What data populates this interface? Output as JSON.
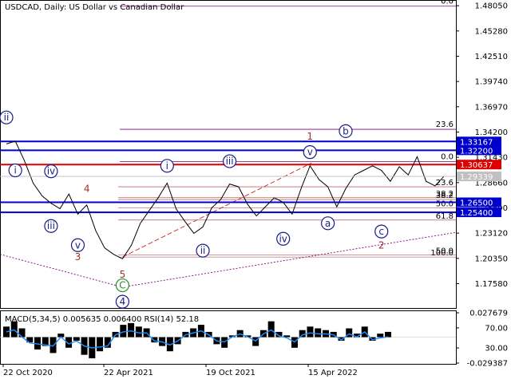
{
  "chart_data": {
    "type": "line",
    "title": "USDCAD, Daily:  US Dollar vs Canadian Dollar",
    "symbol": "USDCAD",
    "timeframe": "Daily",
    "description": "US Dollar vs Canadian Dollar",
    "price_axis_ticks": [
      "1.48050",
      "1.45280",
      "1.42510",
      "1.39740",
      "1.36970",
      "1.34200",
      "1.31430",
      "1.28660",
      "1.25890",
      "1.23120",
      "1.20350",
      "1.17580"
    ],
    "price_ylim": [
      1.15,
      1.485
    ],
    "current_price_label": "1.29339",
    "x_tick_labels": [
      "22 Oct 2020",
      "22 Apr 2021",
      "19 Oct 2021",
      "15 Apr 2022"
    ],
    "horizontal_levels": [
      {
        "label": "1.33167",
        "value": 1.33167,
        "color": "#0000cc"
      },
      {
        "label": "1.32200",
        "value": 1.322,
        "color": "#0000cc"
      },
      {
        "label": "1.30637",
        "value": 1.30637,
        "color": "#dd0000"
      },
      {
        "label": "1.26500",
        "value": 1.265,
        "color": "#0000cc"
      },
      {
        "label": "1.25400",
        "value": 1.254,
        "color": "#0000cc"
      }
    ],
    "fib_levels_upper": [
      {
        "label": "0.0",
        "value": 1.48
      },
      {
        "label": "23.6",
        "value": 1.345
      },
      {
        "label": "0.0",
        "value": 1.3095
      }
    ],
    "fib_levels_lower": [
      {
        "label": "23.6",
        "value": 1.282
      },
      {
        "label": "38.2",
        "value": 1.27
      },
      {
        "label": "38.2",
        "value": 1.268
      },
      {
        "label": "50.0",
        "value": 1.259
      },
      {
        "label": "61.8",
        "value": 1.2455
      },
      {
        "label": "50.0",
        "value": 1.2075
      },
      {
        "label": "100.0",
        "value": 1.205
      }
    ],
    "wave_labels": [
      {
        "text": "ii",
        "style": "circle",
        "color": "#1a1a8c",
        "x": 0,
        "y": 1.358
      },
      {
        "text": "i",
        "style": "circle",
        "color": "#1a1a8c",
        "x": 1,
        "y": 1.3
      },
      {
        "text": "iv",
        "style": "circle",
        "color": "#1a1a8c",
        "x": 5,
        "y": 1.299
      },
      {
        "text": "iii",
        "style": "circle",
        "color": "#1a1a8c",
        "x": 5,
        "y": 1.239
      },
      {
        "text": "v",
        "style": "circle",
        "color": "#1a1a8c",
        "x": 8,
        "y": 1.218
      },
      {
        "text": "4",
        "style": "plain",
        "color": "#a03030",
        "x": 9,
        "y": 1.28
      },
      {
        "text": "3",
        "style": "plain",
        "color": "#a03030",
        "x": 8,
        "y": 1.205
      },
      {
        "text": "5",
        "style": "plain",
        "color": "#a03030",
        "x": 13,
        "y": 1.186
      },
      {
        "text": "C",
        "style": "circle",
        "color": "#2e8b2e",
        "x": 13,
        "y": 1.174
      },
      {
        "text": "4",
        "style": "circle",
        "color": "#1a1a8c",
        "x": 13,
        "y": 1.156
      },
      {
        "text": "i",
        "style": "circle",
        "color": "#1a1a8c",
        "x": 18,
        "y": 1.305
      },
      {
        "text": "ii",
        "style": "circle",
        "color": "#1a1a8c",
        "x": 22,
        "y": 1.212
      },
      {
        "text": "iii",
        "style": "circle",
        "color": "#1a1a8c",
        "x": 25,
        "y": 1.31
      },
      {
        "text": "iv",
        "style": "circle",
        "color": "#1a1a8c",
        "x": 31,
        "y": 1.225
      },
      {
        "text": "1",
        "style": "plain",
        "color": "#a03030",
        "x": 34,
        "y": 1.337
      },
      {
        "text": "v",
        "style": "circle",
        "color": "#1a1a8c",
        "x": 34,
        "y": 1.32
      },
      {
        "text": "a",
        "style": "circle",
        "color": "#1a1a8c",
        "x": 36,
        "y": 1.242
      },
      {
        "text": "b",
        "style": "circle",
        "color": "#1a1a8c",
        "x": 38,
        "y": 1.343
      },
      {
        "text": "c",
        "style": "circle",
        "color": "#1a1a8c",
        "x": 42,
        "y": 1.233
      },
      {
        "text": "2",
        "style": "plain",
        "color": "#a03030",
        "x": 42,
        "y": 1.218
      }
    ],
    "price_series": [
      1.329,
      1.332,
      1.311,
      1.286,
      1.272,
      1.264,
      1.258,
      1.274,
      1.252,
      1.262,
      1.234,
      1.215,
      1.208,
      1.203,
      1.218,
      1.242,
      1.256,
      1.27,
      1.286,
      1.258,
      1.244,
      1.231,
      1.238,
      1.259,
      1.268,
      1.285,
      1.282,
      1.263,
      1.25,
      1.26,
      1.27,
      1.265,
      1.252,
      1.28,
      1.305,
      1.29,
      1.282,
      1.26,
      1.28,
      1.295,
      1.3,
      1.305,
      1.3,
      1.288,
      1.304,
      1.295,
      1.315,
      1.288,
      1.283,
      1.2934
    ],
    "indicator": {
      "label": "MACD(5,34,5) 0.005635 0.006400 RSI(14) 52.18",
      "macd_params": "MACD(5,34,5)",
      "macd_value": 0.005635,
      "signal_value": 0.0064,
      "rsi_params": "RSI(14)",
      "rsi_value": 52.18,
      "axis_ticks": [
        "0.027679",
        "70.00",
        "30.00",
        "-0.029387"
      ],
      "ylim": [
        -0.029387,
        0.027679
      ],
      "macd_histogram": [
        0.012,
        0.018,
        0.01,
        -0.006,
        -0.014,
        -0.01,
        -0.018,
        0.004,
        -0.012,
        -0.004,
        -0.02,
        -0.024,
        -0.016,
        -0.012,
        0.006,
        0.014,
        0.016,
        0.012,
        0.01,
        -0.006,
        -0.01,
        -0.016,
        -0.008,
        0.006,
        0.01,
        0.014,
        0.006,
        -0.008,
        -0.012,
        0.002,
        0.008,
        0.002,
        -0.01,
        0.008,
        0.018,
        0.006,
        0.002,
        -0.012,
        0.008,
        0.012,
        0.01,
        0.008,
        0.006,
        -0.004,
        0.01,
        0.004,
        0.012,
        -0.004,
        0.004,
        0.006
      ],
      "rsi_series": [
        62,
        66,
        52,
        40,
        38,
        36,
        34,
        52,
        38,
        44,
        34,
        30,
        32,
        34,
        56,
        62,
        64,
        60,
        60,
        44,
        42,
        36,
        44,
        56,
        60,
        64,
        56,
        44,
        42,
        52,
        58,
        52,
        44,
        58,
        66,
        54,
        50,
        42,
        56,
        60,
        58,
        58,
        56,
        46,
        58,
        52,
        62,
        46,
        50,
        52
      ]
    }
  }
}
